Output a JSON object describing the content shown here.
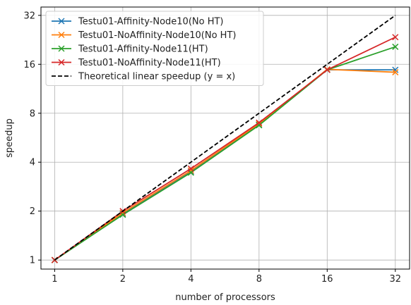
{
  "chart_data": {
    "type": "line",
    "title": "",
    "xlabel": "number of processors",
    "ylabel": "speedup",
    "x_scale": "log2",
    "y_scale": "log2",
    "x": [
      1,
      2,
      4,
      8,
      16,
      32
    ],
    "xticks": [
      1,
      2,
      4,
      8,
      16,
      32
    ],
    "yticks": [
      1,
      2,
      4,
      8,
      16,
      32
    ],
    "xlim": [
      0.87,
      37
    ],
    "ylim": [
      0.88,
      36
    ],
    "grid": true,
    "legend_position": "top-left",
    "series": [
      {
        "name": "Testu01-Affinity-Node10(No HT)",
        "color": "#1f77b4",
        "marker": "x",
        "dash": "solid",
        "values": [
          1,
          1.92,
          3.5,
          6.8,
          14.8,
          14.8
        ]
      },
      {
        "name": "Testu01-NoAffinity-Node10(No HT)",
        "color": "#ff7f0e",
        "marker": "x",
        "dash": "solid",
        "values": [
          1,
          1.95,
          3.55,
          6.9,
          14.9,
          14.3
        ]
      },
      {
        "name": "Testu01-Affinity-Node11(HT)",
        "color": "#2ca02c",
        "marker": "x",
        "dash": "solid",
        "values": [
          1,
          1.9,
          3.45,
          6.75,
          14.8,
          20.5
        ]
      },
      {
        "name": "Testu01-NoAffinity-Node11(HT)",
        "color": "#d62728",
        "marker": "x",
        "dash": "solid",
        "values": [
          1,
          2.0,
          3.65,
          7.0,
          14.8,
          23.5
        ]
      },
      {
        "name": "Theoretical linear speedup (y = x)",
        "color": "#000000",
        "marker": "none",
        "dash": "dashed",
        "values": [
          1,
          2,
          4,
          8,
          16,
          32
        ]
      }
    ]
  }
}
